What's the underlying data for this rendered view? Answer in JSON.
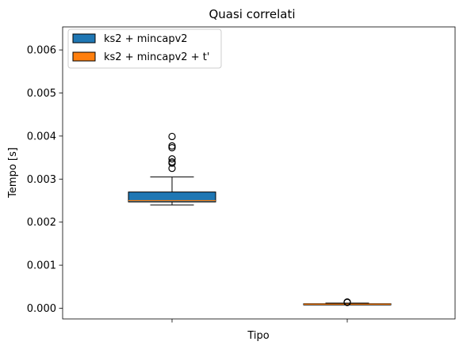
{
  "chart_data": {
    "type": "boxplot",
    "title": "Quasi correlati",
    "xlabel": "Tipo",
    "ylabel": "Tempo [s]",
    "ylim": [
      -0.000215,
      0.00656
    ],
    "yticks": [
      "0.000",
      "0.001",
      "0.002",
      "0.003",
      "0.004",
      "0.005",
      "0.006"
    ],
    "ytick_values": [
      0,
      0.001,
      0.002,
      0.003,
      0.004,
      0.005,
      0.006
    ],
    "grid": false,
    "legend_position": "top-left",
    "series": [
      {
        "name": "ks2 + mincapv2",
        "color": "#1f77b4",
        "median_color": "#ff7f0e",
        "whisker_low": 0.0024,
        "q1": 0.00247,
        "median": 0.0025,
        "q3": 0.0027,
        "whisker_high": 0.00305,
        "outliers": [
          0.00325,
          0.00337,
          0.0034,
          0.00347,
          0.00373,
          0.00377,
          0.00399
        ]
      },
      {
        "name": "ks2 + mincapv2 + t'",
        "color": "#ff7f0e",
        "median_color": "#ff7f0e",
        "whisker_low": 8.5e-05,
        "q1": 9e-05,
        "median": 9.5e-05,
        "q3": 0.000105,
        "whisker_high": 0.00012,
        "outliers": [
          0.000135,
          0.000145
        ]
      }
    ]
  }
}
